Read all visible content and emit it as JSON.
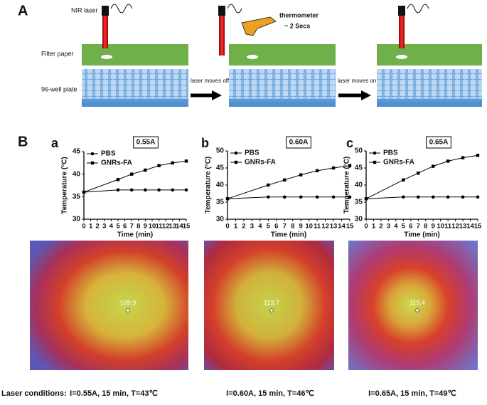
{
  "figure": {
    "panel_a_letter": "A",
    "panel_b_letter": "B",
    "nir_laser": "NIR laser",
    "filter_paper": "Filter paper",
    "well_plate": "96-well plate",
    "moves_off": "laser moves off",
    "thermometer": "thermometer",
    "duration": "~ 2 Secs",
    "moves_on": "laser moves on"
  },
  "chart_data": [
    {
      "type": "line",
      "panel": "a",
      "title": "0.55A",
      "x_label": "Time (min)",
      "y_label": "Temperature (°C)",
      "x": [
        0,
        5,
        7,
        9,
        11,
        13,
        15
      ],
      "xlim": [
        0,
        15
      ],
      "xticks": [
        0,
        1,
        2,
        3,
        4,
        5,
        6,
        7,
        8,
        9,
        10,
        11,
        12,
        13,
        14,
        15
      ],
      "ylim": [
        30,
        45
      ],
      "yticks": [
        30,
        35,
        40,
        45
      ],
      "legend": "top-left",
      "series": [
        {
          "name": "PBS",
          "color": "#000000",
          "marker": "circle",
          "values": [
            36,
            36.5,
            36.5,
            36.5,
            36.5,
            36.5,
            36.5
          ]
        },
        {
          "name": "GNRs-FA",
          "color": "#000000",
          "marker": "square",
          "values": [
            36,
            38.8,
            40,
            40.9,
            41.9,
            42.5,
            42.9
          ]
        }
      ]
    },
    {
      "type": "line",
      "panel": "b",
      "title": "0.60A",
      "x_label": "Time (min)",
      "y_label": "Temperature (°C)",
      "x": [
        0,
        5,
        7,
        9,
        11,
        13,
        15
      ],
      "xlim": [
        0,
        15
      ],
      "xticks": [
        0,
        1,
        2,
        3,
        4,
        5,
        6,
        7,
        8,
        9,
        10,
        11,
        12,
        13,
        14,
        15
      ],
      "ylim": [
        30,
        50
      ],
      "yticks": [
        30,
        35,
        40,
        45,
        50
      ],
      "legend": "top-left",
      "series": [
        {
          "name": "PBS",
          "color": "#000000",
          "marker": "circle",
          "values": [
            36,
            36.5,
            36.5,
            36.5,
            36.5,
            36.5,
            36.5
          ]
        },
        {
          "name": "GNRs-FA",
          "color": "#000000",
          "marker": "square",
          "values": [
            36,
            40,
            41.5,
            43,
            44.2,
            45,
            45.7
          ]
        }
      ]
    },
    {
      "type": "line",
      "panel": "c",
      "title": "0.65A",
      "x_label": "Time (min)",
      "y_label": "Temperature (°C)",
      "x": [
        0,
        5,
        7,
        9,
        11,
        13,
        15
      ],
      "xlim": [
        0,
        15
      ],
      "xticks": [
        0,
        1,
        2,
        3,
        4,
        5,
        6,
        7,
        8,
        9,
        10,
        11,
        12,
        13,
        14,
        15
      ],
      "ylim": [
        30,
        50
      ],
      "yticks": [
        30,
        35,
        40,
        45,
        50
      ],
      "legend": "top-left",
      "series": [
        {
          "name": "PBS",
          "color": "#000000",
          "marker": "circle",
          "values": [
            36,
            36.5,
            36.5,
            36.5,
            36.5,
            36.5,
            36.5
          ]
        },
        {
          "name": "GNRs-FA",
          "color": "#000000",
          "marker": "square",
          "values": [
            36,
            41.5,
            43.5,
            45.5,
            47,
            48,
            48.7
          ]
        }
      ]
    }
  ],
  "thermal_images": [
    {
      "reading": "109.9"
    },
    {
      "reading": "113.7"
    },
    {
      "reading": "119.4"
    }
  ],
  "laser_conditions": {
    "label": "Laser conditions:",
    "items": [
      "I=0.55A, 15 min, T=43℃",
      "I=0.60A, 15 min, T=46℃",
      "I=0.65A, 15 min, T=49℃"
    ]
  }
}
